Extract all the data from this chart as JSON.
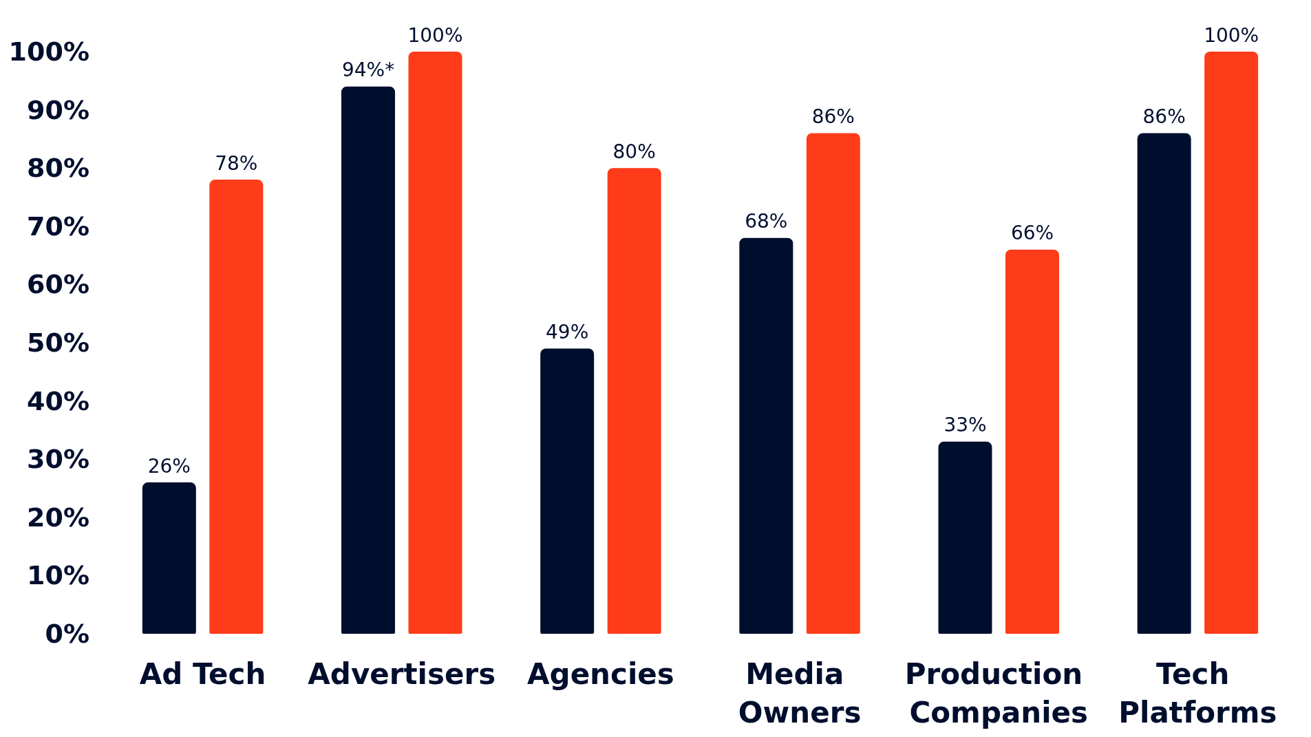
{
  "chart_data": {
    "type": "bar",
    "categories": [
      "Ad Tech",
      "Advertisers",
      "Agencies",
      "Media Owners",
      "Production Companies",
      "Tech Platforms"
    ],
    "series": [
      {
        "color": "#000e2e",
        "values": [
          26,
          94,
          49,
          68,
          33,
          86
        ],
        "value_labels": [
          "26%",
          "94%*",
          "49%",
          "68%",
          "33%",
          "86%"
        ]
      },
      {
        "color": "#ff3c19",
        "values": [
          78,
          100,
          80,
          86,
          66,
          100
        ],
        "value_labels": [
          "78%",
          "100%",
          "80%",
          "86%",
          "66%",
          "100%"
        ]
      }
    ],
    "ylim": [
      0,
      100
    ],
    "yticks": [
      {
        "value": 0,
        "label": "0%"
      },
      {
        "value": 10,
        "label": "10%"
      },
      {
        "value": 20,
        "label": "20%"
      },
      {
        "value": 30,
        "label": "30%"
      },
      {
        "value": 40,
        "label": "40%"
      },
      {
        "value": 50,
        "label": "50%"
      },
      {
        "value": 60,
        "label": "60%"
      },
      {
        "value": 70,
        "label": "70%"
      },
      {
        "value": 80,
        "label": "80%"
      },
      {
        "value": 90,
        "label": "90%"
      },
      {
        "value": 100,
        "label": "100%"
      }
    ],
    "grid": false
  }
}
